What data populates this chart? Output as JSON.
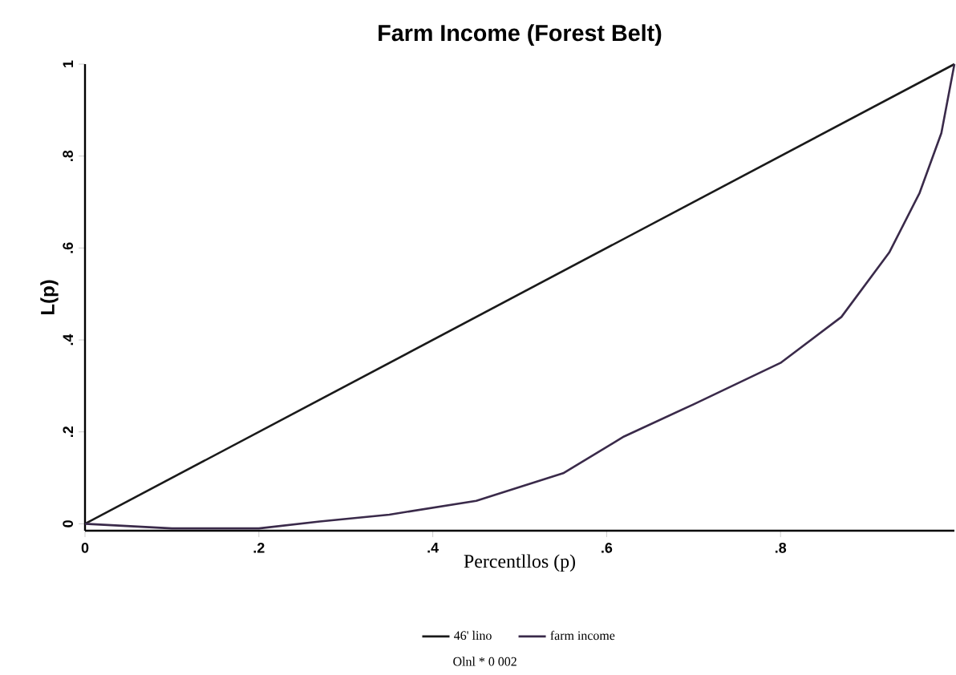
{
  "chart_data": {
    "type": "line",
    "title": "Farm Income (Forest Belt)",
    "xlabel": "Percentllos (p)",
    "ylabel": "L(p)",
    "xlim": [
      0,
      1
    ],
    "ylim": [
      -0.015,
      1
    ],
    "xticks": [
      0,
      {
        "value": 0.2,
        "label": ".2"
      },
      {
        "value": 0.4,
        "label": ".4"
      },
      {
        "value": 0.6,
        "label": ".6"
      },
      {
        "value": 0.8,
        "label": ".8"
      }
    ],
    "yticks": [
      0,
      {
        "value": 0.2,
        "label": ".2"
      },
      {
        "value": 0.4,
        "label": ".4"
      },
      {
        "value": 0.6,
        "label": ".6"
      },
      {
        "value": 0.8,
        "label": ".8"
      },
      1
    ],
    "series": [
      {
        "name": "46' lino",
        "color": "#1a1a1a",
        "x": [
          0,
          1
        ],
        "values": [
          0,
          1
        ]
      },
      {
        "name": "farm income",
        "color": "#3a2a4a",
        "x": [
          0,
          0.1,
          0.2,
          0.27,
          0.35,
          0.45,
          0.55,
          0.62,
          0.7,
          0.8,
          0.87,
          0.925,
          0.96,
          0.985,
          1
        ],
        "values": [
          0,
          -0.01,
          -0.01,
          0.005,
          0.02,
          0.05,
          0.11,
          0.19,
          0.26,
          0.35,
          0.45,
          0.59,
          0.72,
          0.85,
          1
        ]
      }
    ],
    "legend": "bottom",
    "grid": false,
    "annotations": [
      "Olnl * 0 002"
    ]
  }
}
